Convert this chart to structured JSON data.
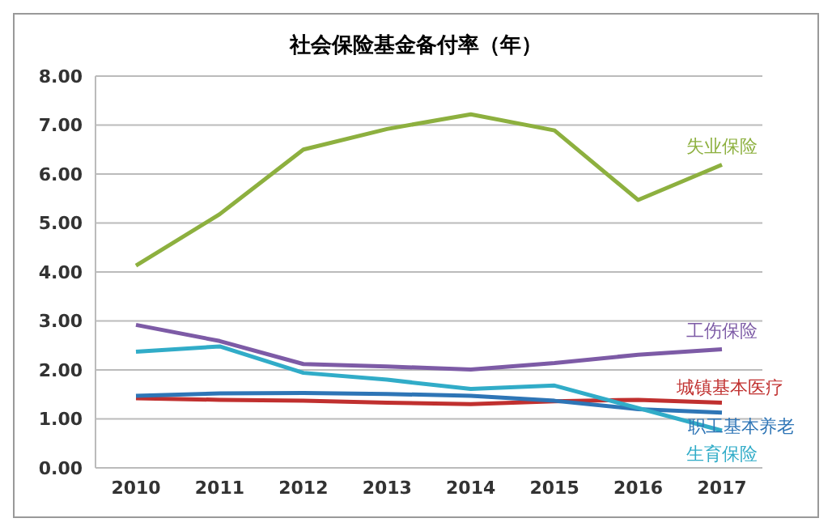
{
  "chart_data": {
    "type": "line",
    "title": "社会保险基金备付率（年）",
    "categories": [
      "2010",
      "2011",
      "2012",
      "2013",
      "2014",
      "2015",
      "2016",
      "2017"
    ],
    "series": [
      {
        "name": "失业保险",
        "color": "#8db03f",
        "values": [
          4.13,
          5.18,
          6.5,
          6.92,
          7.22,
          6.89,
          5.47,
          6.19
        ]
      },
      {
        "name": "工伤保险",
        "color": "#7d5ba6",
        "values": [
          2.92,
          2.59,
          2.12,
          2.07,
          2.01,
          2.14,
          2.31,
          2.42
        ]
      },
      {
        "name": "城镇基本医疗",
        "color": "#c0302f",
        "values": [
          1.42,
          1.39,
          1.37,
          1.33,
          1.3,
          1.36,
          1.39,
          1.33
        ]
      },
      {
        "name": "职工基本养老",
        "color": "#2e75b6",
        "values": [
          1.47,
          1.52,
          1.53,
          1.51,
          1.47,
          1.37,
          1.2,
          1.13
        ]
      },
      {
        "name": "生育保险",
        "color": "#31acc8",
        "values": [
          2.37,
          2.48,
          1.94,
          1.8,
          1.61,
          1.68,
          1.22,
          0.76
        ]
      }
    ],
    "ylim": [
      0,
      8
    ],
    "yticks": [
      {
        "value": 0,
        "label": "0.00"
      },
      {
        "value": 1,
        "label": "1.00"
      },
      {
        "value": 2,
        "label": "2.00"
      },
      {
        "value": 3,
        "label": "3.00"
      },
      {
        "value": 4,
        "label": "4.00"
      },
      {
        "value": 5,
        "label": "5.00"
      },
      {
        "value": 6,
        "label": "6.00"
      },
      {
        "value": 7,
        "label": "7.00"
      },
      {
        "value": 8,
        "label": "8.00"
      }
    ],
    "grid": "y",
    "marker": "none",
    "line_style": "solid"
  }
}
